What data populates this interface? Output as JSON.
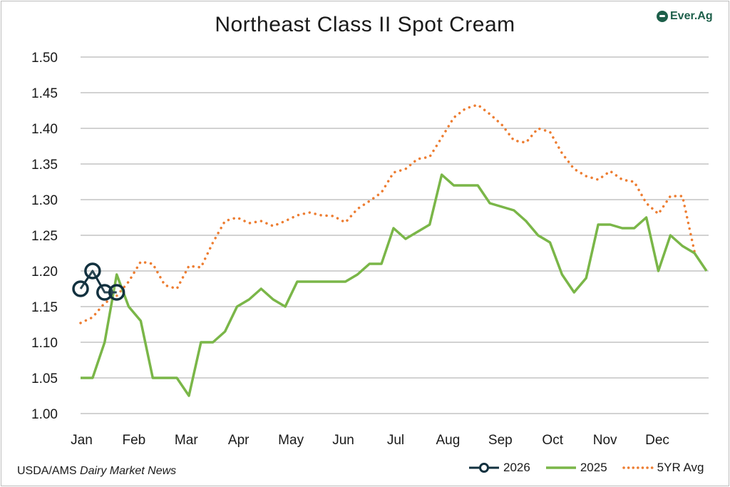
{
  "title": "Northeast Class II Spot Cream",
  "logo_text": "Ever.Ag",
  "source": {
    "prefix": "USDA/AMS ",
    "italic": "Dairy Market News"
  },
  "chart_data": {
    "type": "line",
    "title": "Northeast Class II Spot Cream",
    "ylim": [
      1.0,
      1.5
    ],
    "yticks": [
      "1.00",
      "1.05",
      "1.10",
      "1.15",
      "1.20",
      "1.25",
      "1.30",
      "1.35",
      "1.40",
      "1.45",
      "1.50"
    ],
    "xlim": [
      0,
      12
    ],
    "month_labels": [
      "Jan",
      "Feb",
      "Mar",
      "Apr",
      "May",
      "Jun",
      "Jul",
      "Aug",
      "Sep",
      "Oct",
      "Nov",
      "Dec"
    ],
    "grid": true,
    "legend_position": "bottom-right",
    "series": [
      {
        "name": "2026",
        "color": "#12313f",
        "style": "line-markers",
        "points": [
          [
            0.0,
            1.175
          ],
          [
            0.23,
            1.2
          ],
          [
            0.46,
            1.17
          ],
          [
            0.69,
            1.17
          ]
        ]
      },
      {
        "name": "2025",
        "color": "#7ab648",
        "style": "solid",
        "points": [
          [
            0.0,
            1.05
          ],
          [
            0.23,
            1.05
          ],
          [
            0.46,
            1.1
          ],
          [
            0.69,
            1.195
          ],
          [
            0.92,
            1.15
          ],
          [
            1.15,
            1.13
          ],
          [
            1.38,
            1.05
          ],
          [
            1.61,
            1.05
          ],
          [
            1.84,
            1.05
          ],
          [
            2.07,
            1.025
          ],
          [
            2.3,
            1.1
          ],
          [
            2.53,
            1.1
          ],
          [
            2.76,
            1.115
          ],
          [
            2.99,
            1.15
          ],
          [
            3.22,
            1.16
          ],
          [
            3.45,
            1.175
          ],
          [
            3.68,
            1.16
          ],
          [
            3.91,
            1.15
          ],
          [
            4.14,
            1.185
          ],
          [
            4.37,
            1.185
          ],
          [
            4.6,
            1.185
          ],
          [
            4.83,
            1.185
          ],
          [
            5.06,
            1.185
          ],
          [
            5.29,
            1.195
          ],
          [
            5.52,
            1.21
          ],
          [
            5.75,
            1.21
          ],
          [
            5.98,
            1.26
          ],
          [
            6.21,
            1.245
          ],
          [
            6.44,
            1.255
          ],
          [
            6.67,
            1.265
          ],
          [
            6.9,
            1.335
          ],
          [
            7.13,
            1.32
          ],
          [
            7.36,
            1.32
          ],
          [
            7.59,
            1.32
          ],
          [
            7.82,
            1.295
          ],
          [
            8.05,
            1.29
          ],
          [
            8.28,
            1.285
          ],
          [
            8.51,
            1.27
          ],
          [
            8.74,
            1.25
          ],
          [
            8.97,
            1.24
          ],
          [
            9.2,
            1.195
          ],
          [
            9.43,
            1.17
          ],
          [
            9.66,
            1.19
          ],
          [
            9.89,
            1.265
          ],
          [
            10.12,
            1.265
          ],
          [
            10.35,
            1.26
          ],
          [
            10.58,
            1.26
          ],
          [
            10.81,
            1.275
          ],
          [
            11.04,
            1.2
          ],
          [
            11.27,
            1.25
          ],
          [
            11.5,
            1.235
          ],
          [
            11.73,
            1.225
          ],
          [
            11.96,
            1.2
          ]
        ]
      },
      {
        "name": "5YR Avg",
        "color": "#ed7d31",
        "style": "dotted",
        "points": [
          [
            0.0,
            1.127
          ],
          [
            0.23,
            1.135
          ],
          [
            0.46,
            1.155
          ],
          [
            0.69,
            1.165
          ],
          [
            0.92,
            1.185
          ],
          [
            1.15,
            1.213
          ],
          [
            1.38,
            1.21
          ],
          [
            1.61,
            1.18
          ],
          [
            1.84,
            1.175
          ],
          [
            2.07,
            1.207
          ],
          [
            2.3,
            1.205
          ],
          [
            2.53,
            1.24
          ],
          [
            2.76,
            1.27
          ],
          [
            2.99,
            1.275
          ],
          [
            3.22,
            1.267
          ],
          [
            3.45,
            1.27
          ],
          [
            3.68,
            1.263
          ],
          [
            3.91,
            1.27
          ],
          [
            4.14,
            1.278
          ],
          [
            4.37,
            1.282
          ],
          [
            4.6,
            1.278
          ],
          [
            4.83,
            1.277
          ],
          [
            5.06,
            1.268
          ],
          [
            5.29,
            1.287
          ],
          [
            5.52,
            1.298
          ],
          [
            5.75,
            1.31
          ],
          [
            5.98,
            1.338
          ],
          [
            6.21,
            1.343
          ],
          [
            6.44,
            1.357
          ],
          [
            6.67,
            1.36
          ],
          [
            6.9,
            1.387
          ],
          [
            7.13,
            1.415
          ],
          [
            7.36,
            1.428
          ],
          [
            7.59,
            1.433
          ],
          [
            7.82,
            1.42
          ],
          [
            8.05,
            1.405
          ],
          [
            8.28,
            1.383
          ],
          [
            8.51,
            1.38
          ],
          [
            8.74,
            1.4
          ],
          [
            8.97,
            1.395
          ],
          [
            9.2,
            1.365
          ],
          [
            9.43,
            1.343
          ],
          [
            9.66,
            1.333
          ],
          [
            9.89,
            1.328
          ],
          [
            10.12,
            1.34
          ],
          [
            10.35,
            1.328
          ],
          [
            10.58,
            1.325
          ],
          [
            10.81,
            1.295
          ],
          [
            11.04,
            1.28
          ],
          [
            11.27,
            1.305
          ],
          [
            11.5,
            1.305
          ],
          [
            11.73,
            1.227
          ]
        ]
      }
    ]
  }
}
